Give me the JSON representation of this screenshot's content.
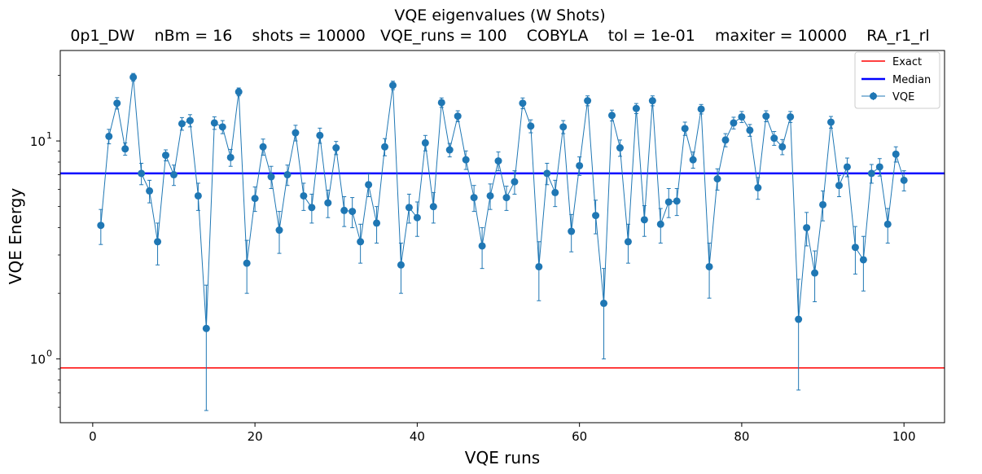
{
  "chart_data": {
    "type": "line",
    "title": "VQE eigenvalues (W Shots)",
    "subtitle": "0p1_DW    nBm = 16    shots = 10000   VQE_runs = 100    COBYLA    tol = 1e-01    maxiter = 10000    RA_r1_rl",
    "xlabel": "VQE runs",
    "ylabel": "VQE Energy",
    "xlim": [
      -4,
      105
    ],
    "ylim": [
      0.51,
      26
    ],
    "yscale": "log",
    "xticks": [
      0,
      20,
      40,
      60,
      80,
      100
    ],
    "yticks": [
      {
        "value": 1,
        "label": "10",
        "exp": "0"
      },
      {
        "value": 10,
        "label": "10",
        "exp": "1"
      }
    ],
    "grid": false,
    "legend_position": "top-right",
    "exact": {
      "name": "Exact",
      "value": 0.91,
      "color": "#ff0000"
    },
    "median": {
      "name": "Median",
      "value": 7.1,
      "color": "#0000ff"
    },
    "series": [
      {
        "name": "VQE",
        "color": "#1f77b4",
        "x": [
          1,
          2,
          3,
          4,
          5,
          6,
          7,
          8,
          9,
          10,
          11,
          12,
          13,
          14,
          15,
          16,
          17,
          18,
          19,
          20,
          21,
          22,
          23,
          24,
          25,
          26,
          27,
          28,
          29,
          30,
          31,
          32,
          33,
          34,
          35,
          36,
          37,
          38,
          39,
          40,
          41,
          42,
          43,
          44,
          45,
          46,
          47,
          48,
          49,
          50,
          51,
          52,
          53,
          54,
          55,
          56,
          57,
          58,
          59,
          60,
          61,
          62,
          63,
          64,
          65,
          66,
          67,
          68,
          69,
          70,
          71,
          72,
          73,
          74,
          75,
          76,
          77,
          78,
          79,
          80,
          81,
          82,
          83,
          84,
          85,
          86,
          87,
          88,
          89,
          90,
          91,
          92,
          93,
          94,
          95,
          96,
          97,
          98,
          99,
          100
        ],
        "values": [
          4.1,
          10.5,
          14.9,
          9.2,
          19.6,
          7.1,
          5.9,
          3.45,
          8.6,
          7.0,
          12.0,
          12.4,
          5.6,
          1.38,
          12.1,
          11.6,
          8.4,
          16.8,
          2.75,
          5.45,
          9.4,
          6.85,
          3.9,
          7.0,
          10.9,
          5.6,
          4.95,
          10.6,
          5.2,
          9.3,
          4.8,
          4.75,
          3.45,
          6.3,
          4.2,
          9.4,
          18.0,
          2.7,
          4.95,
          4.45,
          9.8,
          5.0,
          15.0,
          9.1,
          13.0,
          8.2,
          5.5,
          3.3,
          5.6,
          8.1,
          5.5,
          6.5,
          14.9,
          11.7,
          2.65,
          7.1,
          5.8,
          11.6,
          3.85,
          7.7,
          15.3,
          4.55,
          1.8,
          13.1,
          9.3,
          3.45,
          14.1,
          4.35,
          15.3,
          4.15,
          5.25,
          5.3,
          11.4,
          8.2,
          14.0,
          2.65,
          6.7,
          10.1,
          12.1,
          12.9,
          11.2,
          6.1,
          13.0,
          10.3,
          9.4,
          12.9,
          1.52,
          4.0,
          2.48,
          5.1,
          12.2,
          6.25,
          7.6,
          3.25,
          2.85,
          7.1,
          7.6,
          4.15,
          8.7,
          6.6
        ],
        "errors": [
          0.75,
          0.8,
          0.9,
          0.6,
          0.8,
          0.8,
          0.7,
          0.75,
          0.5,
          0.75,
          0.8,
          0.8,
          0.8,
          0.8,
          0.8,
          0.8,
          0.75,
          0.7,
          0.75,
          0.7,
          0.8,
          0.8,
          0.85,
          0.75,
          0.9,
          0.8,
          0.75,
          0.85,
          0.75,
          0.65,
          0.75,
          0.75,
          0.7,
          0.75,
          0.8,
          0.85,
          0.8,
          0.7,
          0.75,
          0.8,
          0.8,
          0.8,
          0.75,
          0.65,
          0.75,
          0.8,
          0.75,
          0.7,
          0.75,
          0.8,
          0.7,
          0.8,
          0.85,
          0.8,
          0.8,
          0.8,
          0.8,
          0.8,
          0.75,
          0.75,
          0.8,
          0.8,
          0.8,
          0.75,
          0.8,
          0.7,
          0.75,
          0.7,
          0.8,
          0.75,
          0.8,
          0.75,
          0.8,
          0.7,
          0.7,
          0.75,
          0.75,
          0.7,
          0.75,
          0.75,
          0.7,
          0.7,
          0.75,
          0.75,
          0.75,
          0.75,
          0.8,
          0.7,
          0.65,
          0.8,
          0.75,
          0.7,
          0.75,
          0.8,
          0.8,
          0.7,
          0.7,
          0.75,
          0.7,
          0.7
        ]
      }
    ]
  }
}
